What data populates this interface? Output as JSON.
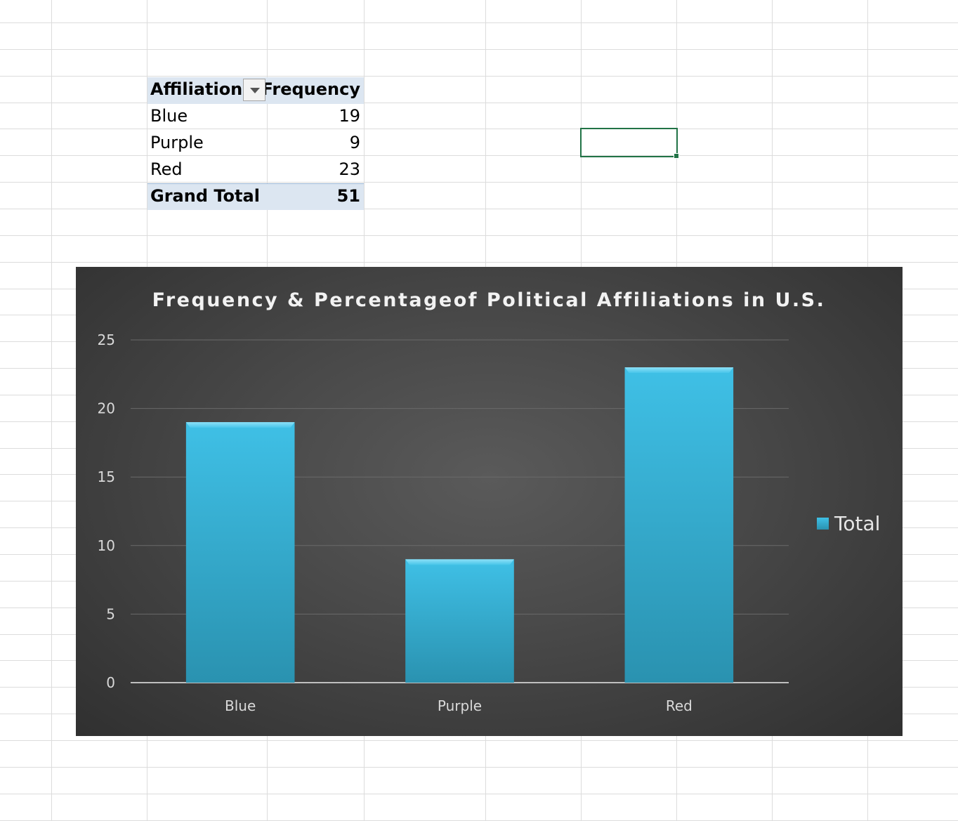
{
  "pivot": {
    "headers": [
      "Affiliation",
      "Frequency"
    ],
    "rows": [
      {
        "label": "Blue",
        "value": "19"
      },
      {
        "label": "Purple",
        "value": "9"
      },
      {
        "label": "Red",
        "value": "23"
      }
    ],
    "total_label": "Grand Total",
    "total_value": "51"
  },
  "colors": {
    "bar": "#3bb8dd",
    "cell_selection": "#217346"
  },
  "chart_data": {
    "type": "bar",
    "title": "Frequency & Percentageof Political Affiliations in U.S.",
    "categories": [
      "Blue",
      "Purple",
      "Red"
    ],
    "series": [
      {
        "name": "Total",
        "values": [
          19,
          9,
          23
        ]
      }
    ],
    "ylim": [
      0,
      25
    ],
    "yticks": [
      0,
      5,
      10,
      15,
      20,
      25
    ],
    "grid": true,
    "legend": "right",
    "xlabel": "",
    "ylabel": ""
  }
}
